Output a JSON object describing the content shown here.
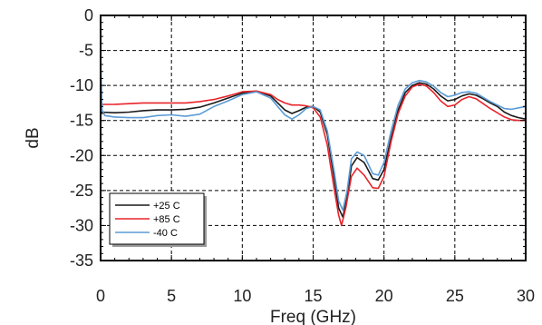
{
  "chart_data": {
    "type": "line",
    "xlabel": "Freq (GHz)",
    "ylabel": "dB",
    "xlim": [
      0,
      30
    ],
    "ylim": [
      -35,
      0
    ],
    "xticks": [
      0,
      5,
      10,
      15,
      20,
      25,
      30
    ],
    "yticks": [
      0,
      -5,
      -10,
      -15,
      -20,
      -25,
      -30,
      -35
    ],
    "grid": true,
    "legend_position": "bottom-left",
    "series": [
      {
        "name": "+25 C",
        "color": "#1a1a1a",
        "points": [
          [
            0,
            -13.8
          ],
          [
            1,
            -13.9
          ],
          [
            2,
            -13.8
          ],
          [
            3,
            -13.6
          ],
          [
            4,
            -13.5
          ],
          [
            5,
            -13.5
          ],
          [
            6,
            -13.4
          ],
          [
            7,
            -13.1
          ],
          [
            8,
            -12.5
          ],
          [
            9,
            -11.8
          ],
          [
            10,
            -11.1
          ],
          [
            11,
            -10.8
          ],
          [
            12,
            -11.5
          ],
          [
            12.5,
            -12.5
          ],
          [
            13,
            -13.5
          ],
          [
            13.5,
            -14.0
          ],
          [
            14,
            -13.6
          ],
          [
            14.5,
            -13.1
          ],
          [
            15,
            -13.0
          ],
          [
            15.5,
            -13.8
          ],
          [
            16,
            -17.0
          ],
          [
            16.5,
            -23.5
          ],
          [
            16.8,
            -27.5
          ],
          [
            17.1,
            -28.8
          ],
          [
            17.4,
            -26.0
          ],
          [
            17.7,
            -21.5
          ],
          [
            18.1,
            -20.3
          ],
          [
            18.6,
            -21.0
          ],
          [
            19.2,
            -23.3
          ],
          [
            19.6,
            -23.5
          ],
          [
            20.0,
            -22.0
          ],
          [
            20.5,
            -17.5
          ],
          [
            21,
            -13.5
          ],
          [
            21.5,
            -11.0
          ],
          [
            22,
            -10.0
          ],
          [
            22.5,
            -9.6
          ],
          [
            23,
            -9.8
          ],
          [
            23.5,
            -10.5
          ],
          [
            24,
            -11.5
          ],
          [
            24.5,
            -12.2
          ],
          [
            25,
            -12.0
          ],
          [
            25.5,
            -11.5
          ],
          [
            26,
            -11.2
          ],
          [
            26.5,
            -11.4
          ],
          [
            27,
            -11.9
          ],
          [
            27.5,
            -12.5
          ],
          [
            28,
            -13.0
          ],
          [
            28.5,
            -13.8
          ],
          [
            29,
            -14.3
          ],
          [
            29.5,
            -14.6
          ],
          [
            30,
            -14.8
          ]
        ]
      },
      {
        "name": "+85 C",
        "color": "#e8242a",
        "points": [
          [
            0,
            -12.7
          ],
          [
            1,
            -12.7
          ],
          [
            2,
            -12.6
          ],
          [
            3,
            -12.5
          ],
          [
            4,
            -12.5
          ],
          [
            5,
            -12.5
          ],
          [
            6,
            -12.5
          ],
          [
            7,
            -12.3
          ],
          [
            8,
            -12.0
          ],
          [
            9,
            -11.5
          ],
          [
            10,
            -10.9
          ],
          [
            11,
            -10.8
          ],
          [
            12,
            -11.3
          ],
          [
            12.5,
            -12.0
          ],
          [
            13,
            -12.5
          ],
          [
            13.5,
            -12.8
          ],
          [
            14,
            -12.8
          ],
          [
            14.5,
            -12.9
          ],
          [
            15,
            -13.2
          ],
          [
            15.5,
            -14.5
          ],
          [
            16,
            -18.5
          ],
          [
            16.5,
            -25.0
          ],
          [
            16.8,
            -28.5
          ],
          [
            17.0,
            -30.0
          ],
          [
            17.3,
            -27.5
          ],
          [
            17.7,
            -23.0
          ],
          [
            18.1,
            -21.8
          ],
          [
            18.6,
            -22.8
          ],
          [
            19.2,
            -24.6
          ],
          [
            19.6,
            -24.7
          ],
          [
            20.0,
            -23.0
          ],
          [
            20.5,
            -18.0
          ],
          [
            21,
            -14.0
          ],
          [
            21.5,
            -11.5
          ],
          [
            22,
            -10.2
          ],
          [
            22.5,
            -9.8
          ],
          [
            23,
            -10.1
          ],
          [
            23.5,
            -11.0
          ],
          [
            24,
            -12.2
          ],
          [
            24.5,
            -13.0
          ],
          [
            25,
            -12.8
          ],
          [
            25.5,
            -12.0
          ],
          [
            26,
            -11.6
          ],
          [
            26.5,
            -11.9
          ],
          [
            27,
            -12.6
          ],
          [
            27.5,
            -13.3
          ],
          [
            28,
            -13.9
          ],
          [
            28.5,
            -14.5
          ],
          [
            29,
            -14.9
          ],
          [
            29.5,
            -15.0
          ],
          [
            30,
            -15.0
          ]
        ]
      },
      {
        "name": "-40 C",
        "color": "#5b9bd5",
        "points": [
          [
            0,
            -6.0
          ],
          [
            0.1,
            -13.5
          ],
          [
            0.3,
            -14.3
          ],
          [
            1,
            -14.5
          ],
          [
            2,
            -14.6
          ],
          [
            3,
            -14.6
          ],
          [
            4,
            -14.3
          ],
          [
            5,
            -14.2
          ],
          [
            6,
            -14.4
          ],
          [
            7,
            -14.1
          ],
          [
            8,
            -13.0
          ],
          [
            9,
            -12.2
          ],
          [
            10,
            -11.3
          ],
          [
            11,
            -10.9
          ],
          [
            12,
            -11.8
          ],
          [
            12.5,
            -13.0
          ],
          [
            13,
            -14.2
          ],
          [
            13.5,
            -14.8
          ],
          [
            14,
            -14.2
          ],
          [
            14.5,
            -13.3
          ],
          [
            15,
            -13.0
          ],
          [
            15.5,
            -13.5
          ],
          [
            16,
            -16.5
          ],
          [
            16.5,
            -22.5
          ],
          [
            16.8,
            -26.5
          ],
          [
            17.1,
            -27.8
          ],
          [
            17.4,
            -25.0
          ],
          [
            17.7,
            -20.5
          ],
          [
            18.1,
            -19.5
          ],
          [
            18.6,
            -20.0
          ],
          [
            19.2,
            -22.6
          ],
          [
            19.6,
            -22.8
          ],
          [
            20.0,
            -21.0
          ],
          [
            20.5,
            -16.5
          ],
          [
            21,
            -12.8
          ],
          [
            21.5,
            -10.5
          ],
          [
            22,
            -9.6
          ],
          [
            22.5,
            -9.3
          ],
          [
            23,
            -9.5
          ],
          [
            23.5,
            -10.1
          ],
          [
            24,
            -11.0
          ],
          [
            24.5,
            -11.6
          ],
          [
            25,
            -11.4
          ],
          [
            25.5,
            -11.0
          ],
          [
            26,
            -10.9
          ],
          [
            26.5,
            -11.1
          ],
          [
            27,
            -11.7
          ],
          [
            27.5,
            -12.3
          ],
          [
            28,
            -12.8
          ],
          [
            28.5,
            -13.3
          ],
          [
            29,
            -13.4
          ],
          [
            29.5,
            -13.2
          ],
          [
            30,
            -13.0
          ]
        ]
      }
    ]
  }
}
